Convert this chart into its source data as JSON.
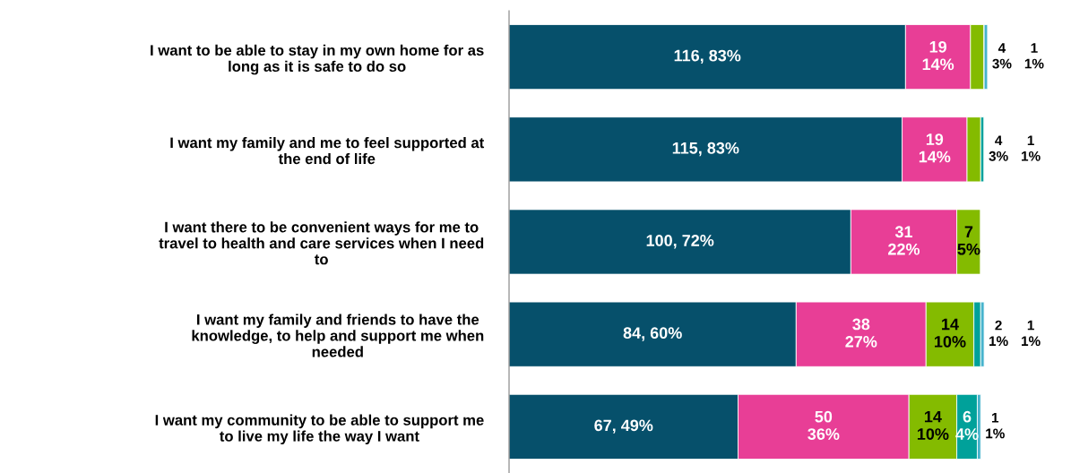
{
  "chart_data": {
    "type": "bar",
    "orientation": "horizontal",
    "stacked": true,
    "categories": [
      "I want to be able to stay in my own home for as\nlong as it is safe to do so",
      "I want my family and me to feel supported at\nthe end of life",
      "I want there to be convenient ways for me to\ntravel to health and care services when I need\nto",
      "I want my family and friends to have the\nknowledge, to help and support me when\nneeded",
      "I want my community to be able to support me\nto live my life the way I want"
    ],
    "series": [
      {
        "color": "#06506b",
        "values": [
          116,
          115,
          100,
          84,
          67
        ],
        "value_labels": [
          "116, 83%",
          "115, 83%",
          "100, 72%",
          "84, 60%",
          "67, 49%"
        ]
      },
      {
        "color": "#e83e96",
        "values": [
          19,
          19,
          31,
          38,
          50
        ],
        "value_labels": [
          "19\n14%",
          "19\n14%",
          "31\n22%",
          "38\n27%",
          "50\n36%"
        ]
      },
      {
        "color": "#84bb00",
        "values": [
          4,
          4,
          7,
          14,
          14
        ],
        "value_labels": [
          "4\n3%",
          "4\n3%",
          "7\n5%",
          "14\n10%",
          "14\n10%"
        ]
      },
      {
        "color": "#00a19a",
        "values": [
          null,
          1,
          null,
          2,
          6
        ],
        "value_labels": [
          null,
          "1\n1%",
          null,
          "2\n1%",
          "6\n4%"
        ]
      },
      {
        "color": "#45b3cc",
        "values": [
          1,
          null,
          null,
          1,
          1
        ],
        "value_labels": [
          "1\n1%",
          null,
          null,
          "1\n1%",
          "1\n1%"
        ]
      }
    ],
    "legend": false,
    "grid": false
  }
}
